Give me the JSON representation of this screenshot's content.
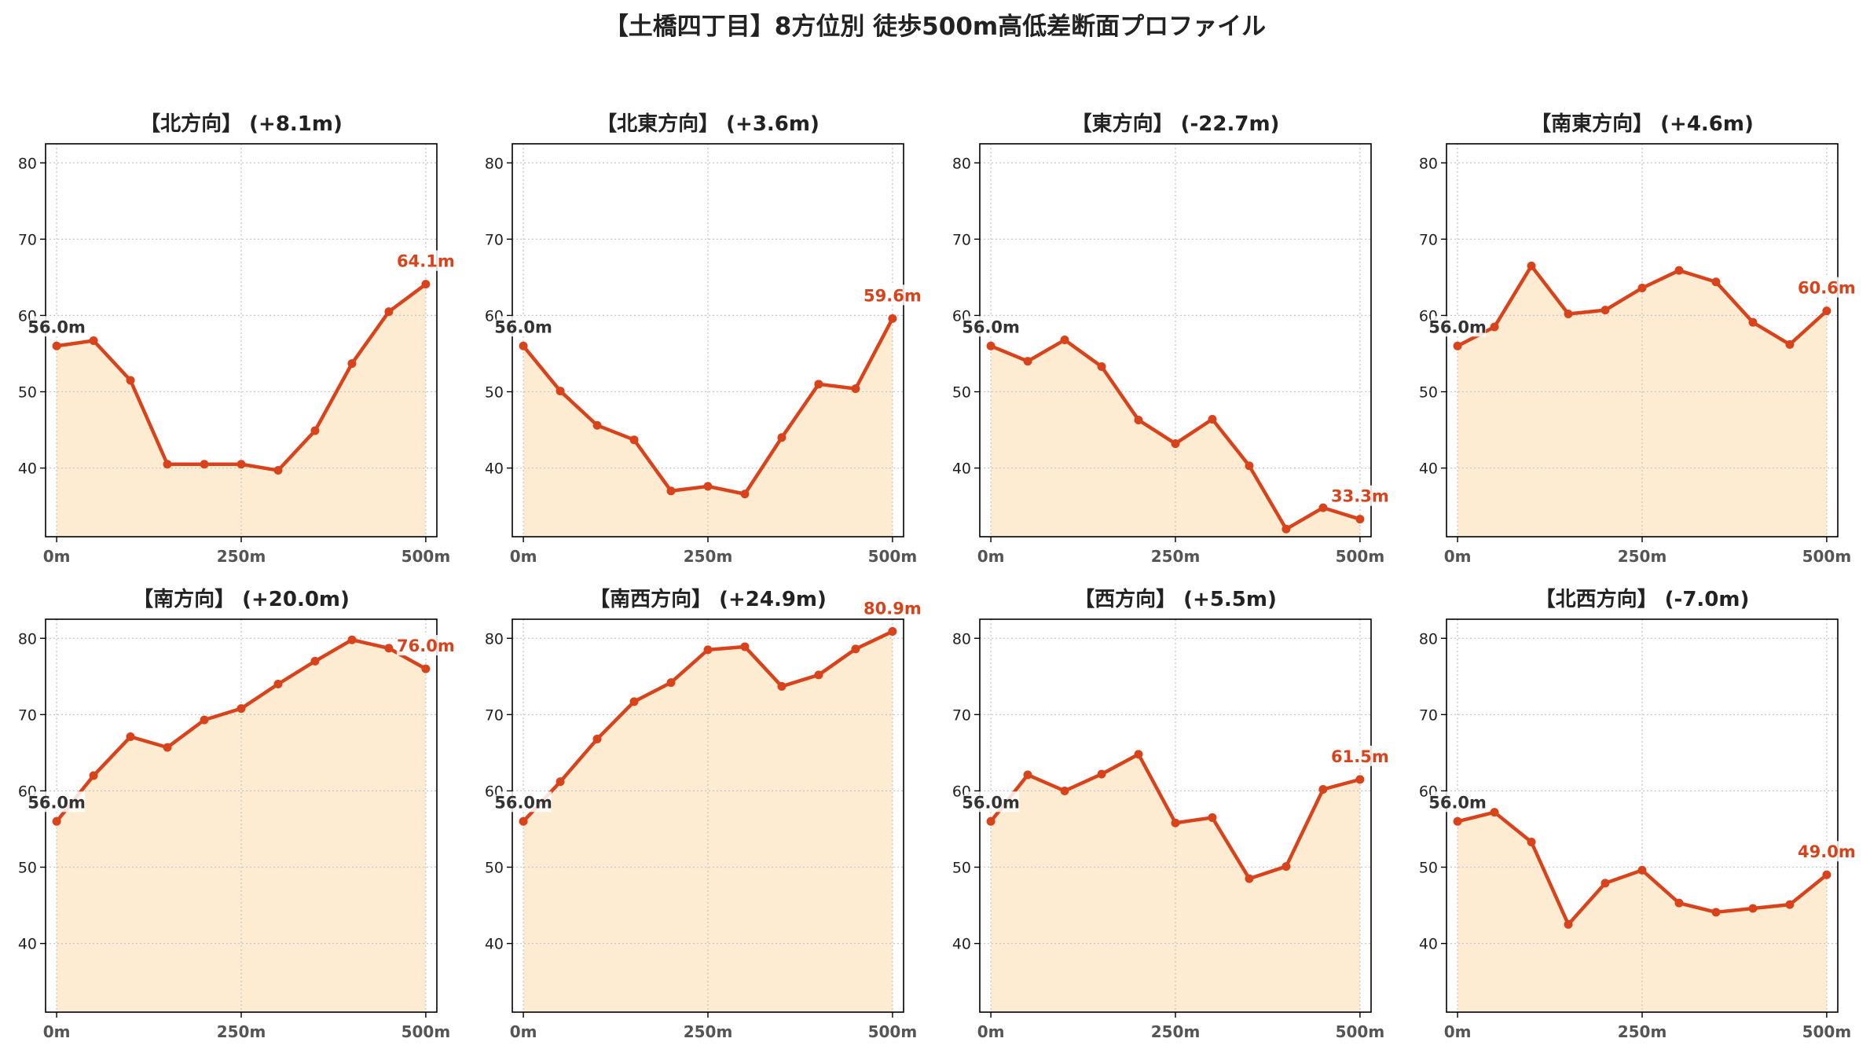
{
  "title": "【土橋四丁目】8方位別 徒歩500m高低差断面プロファイル",
  "colors": {
    "line": "#d9431c",
    "fill": "#fdecd1",
    "end_label": "#d9431c",
    "start_label": "#333333",
    "grid": "#c8c8c8"
  },
  "chart_data": [
    {
      "type": "area",
      "title": "【北方向】 (+8.1m)",
      "x": [
        0,
        50,
        100,
        150,
        200,
        250,
        300,
        350,
        400,
        450,
        500
      ],
      "y": [
        56.0,
        56.7,
        51.5,
        40.5,
        40.5,
        40.5,
        39.7,
        44.9,
        53.7,
        60.5,
        64.1
      ],
      "start_label": "56.0m",
      "end_label": "64.1m",
      "xticks": [
        "0m",
        "250m",
        "500m"
      ],
      "yticks": [
        "40",
        "50",
        "60",
        "70",
        "80"
      ],
      "xlim": [
        -15,
        515
      ],
      "ylim": [
        31,
        82.5
      ],
      "grid": true
    },
    {
      "type": "area",
      "title": "【北東方向】 (+3.6m)",
      "x": [
        0,
        50,
        100,
        150,
        200,
        250,
        300,
        350,
        400,
        450,
        500
      ],
      "y": [
        56.0,
        50.1,
        45.6,
        43.7,
        37.0,
        37.6,
        36.6,
        44.0,
        51.0,
        50.4,
        59.6
      ],
      "start_label": "56.0m",
      "end_label": "59.6m",
      "xticks": [
        "0m",
        "250m",
        "500m"
      ],
      "yticks": [
        "40",
        "50",
        "60",
        "70",
        "80"
      ],
      "xlim": [
        -15,
        515
      ],
      "ylim": [
        31,
        82.5
      ],
      "grid": true
    },
    {
      "type": "area",
      "title": "【東方向】 (-22.7m)",
      "x": [
        0,
        50,
        100,
        150,
        200,
        250,
        300,
        350,
        400,
        450,
        500
      ],
      "y": [
        56.0,
        54.0,
        56.8,
        53.3,
        46.3,
        43.2,
        46.4,
        40.3,
        32.0,
        34.8,
        33.3
      ],
      "start_label": "56.0m",
      "end_label": "33.3m",
      "xticks": [
        "0m",
        "250m",
        "500m"
      ],
      "yticks": [
        "40",
        "50",
        "60",
        "70",
        "80"
      ],
      "xlim": [
        -15,
        515
      ],
      "ylim": [
        31,
        82.5
      ],
      "grid": true
    },
    {
      "type": "area",
      "title": "【南東方向】 (+4.6m)",
      "x": [
        0,
        50,
        100,
        150,
        200,
        250,
        300,
        350,
        400,
        450,
        500
      ],
      "y": [
        56.0,
        58.5,
        66.5,
        60.2,
        60.7,
        63.6,
        65.9,
        64.4,
        59.1,
        56.2,
        60.6
      ],
      "start_label": "56.0m",
      "end_label": "60.6m",
      "xticks": [
        "0m",
        "250m",
        "500m"
      ],
      "yticks": [
        "40",
        "50",
        "60",
        "70",
        "80"
      ],
      "xlim": [
        -15,
        515
      ],
      "ylim": [
        31,
        82.5
      ],
      "grid": true
    },
    {
      "type": "area",
      "title": "【南方向】 (+20.0m)",
      "x": [
        0,
        50,
        100,
        150,
        200,
        250,
        300,
        350,
        400,
        450,
        500
      ],
      "y": [
        56.0,
        62.0,
        67.1,
        65.7,
        69.3,
        70.8,
        74.0,
        77.0,
        79.8,
        78.7,
        76.0
      ],
      "start_label": "56.0m",
      "end_label": "76.0m",
      "xticks": [
        "0m",
        "250m",
        "500m"
      ],
      "yticks": [
        "40",
        "50",
        "60",
        "70",
        "80"
      ],
      "xlim": [
        -15,
        515
      ],
      "ylim": [
        31,
        82.5
      ],
      "grid": true
    },
    {
      "type": "area",
      "title": "【南西方向】 (+24.9m)",
      "x": [
        0,
        50,
        100,
        150,
        200,
        250,
        300,
        350,
        400,
        450,
        500
      ],
      "y": [
        56.0,
        61.2,
        66.8,
        71.7,
        74.2,
        78.5,
        78.9,
        73.7,
        75.2,
        78.6,
        80.9
      ],
      "start_label": "56.0m",
      "end_label": "80.9m",
      "xticks": [
        "0m",
        "250m",
        "500m"
      ],
      "yticks": [
        "40",
        "50",
        "60",
        "70",
        "80"
      ],
      "xlim": [
        -15,
        515
      ],
      "ylim": [
        31,
        82.5
      ],
      "grid": true
    },
    {
      "type": "area",
      "title": "【西方向】 (+5.5m)",
      "x": [
        0,
        50,
        100,
        150,
        200,
        250,
        300,
        350,
        400,
        450,
        500
      ],
      "y": [
        56.0,
        62.1,
        60.0,
        62.2,
        64.8,
        55.8,
        56.5,
        48.5,
        50.1,
        60.2,
        61.5
      ],
      "start_label": "56.0m",
      "end_label": "61.5m",
      "xticks": [
        "0m",
        "250m",
        "500m"
      ],
      "yticks": [
        "40",
        "50",
        "60",
        "70",
        "80"
      ],
      "xlim": [
        -15,
        515
      ],
      "ylim": [
        31,
        82.5
      ],
      "grid": true
    },
    {
      "type": "area",
      "title": "【北西方向】 (-7.0m)",
      "x": [
        0,
        50,
        100,
        150,
        200,
        250,
        300,
        350,
        400,
        450,
        500
      ],
      "y": [
        56.0,
        57.2,
        53.3,
        42.5,
        47.9,
        49.6,
        45.3,
        44.1,
        44.6,
        45.1,
        49.0
      ],
      "start_label": "56.0m",
      "end_label": "49.0m",
      "xticks": [
        "0m",
        "250m",
        "500m"
      ],
      "yticks": [
        "40",
        "50",
        "60",
        "70",
        "80"
      ],
      "xlim": [
        -15,
        515
      ],
      "ylim": [
        31,
        82.5
      ],
      "grid": true
    }
  ]
}
